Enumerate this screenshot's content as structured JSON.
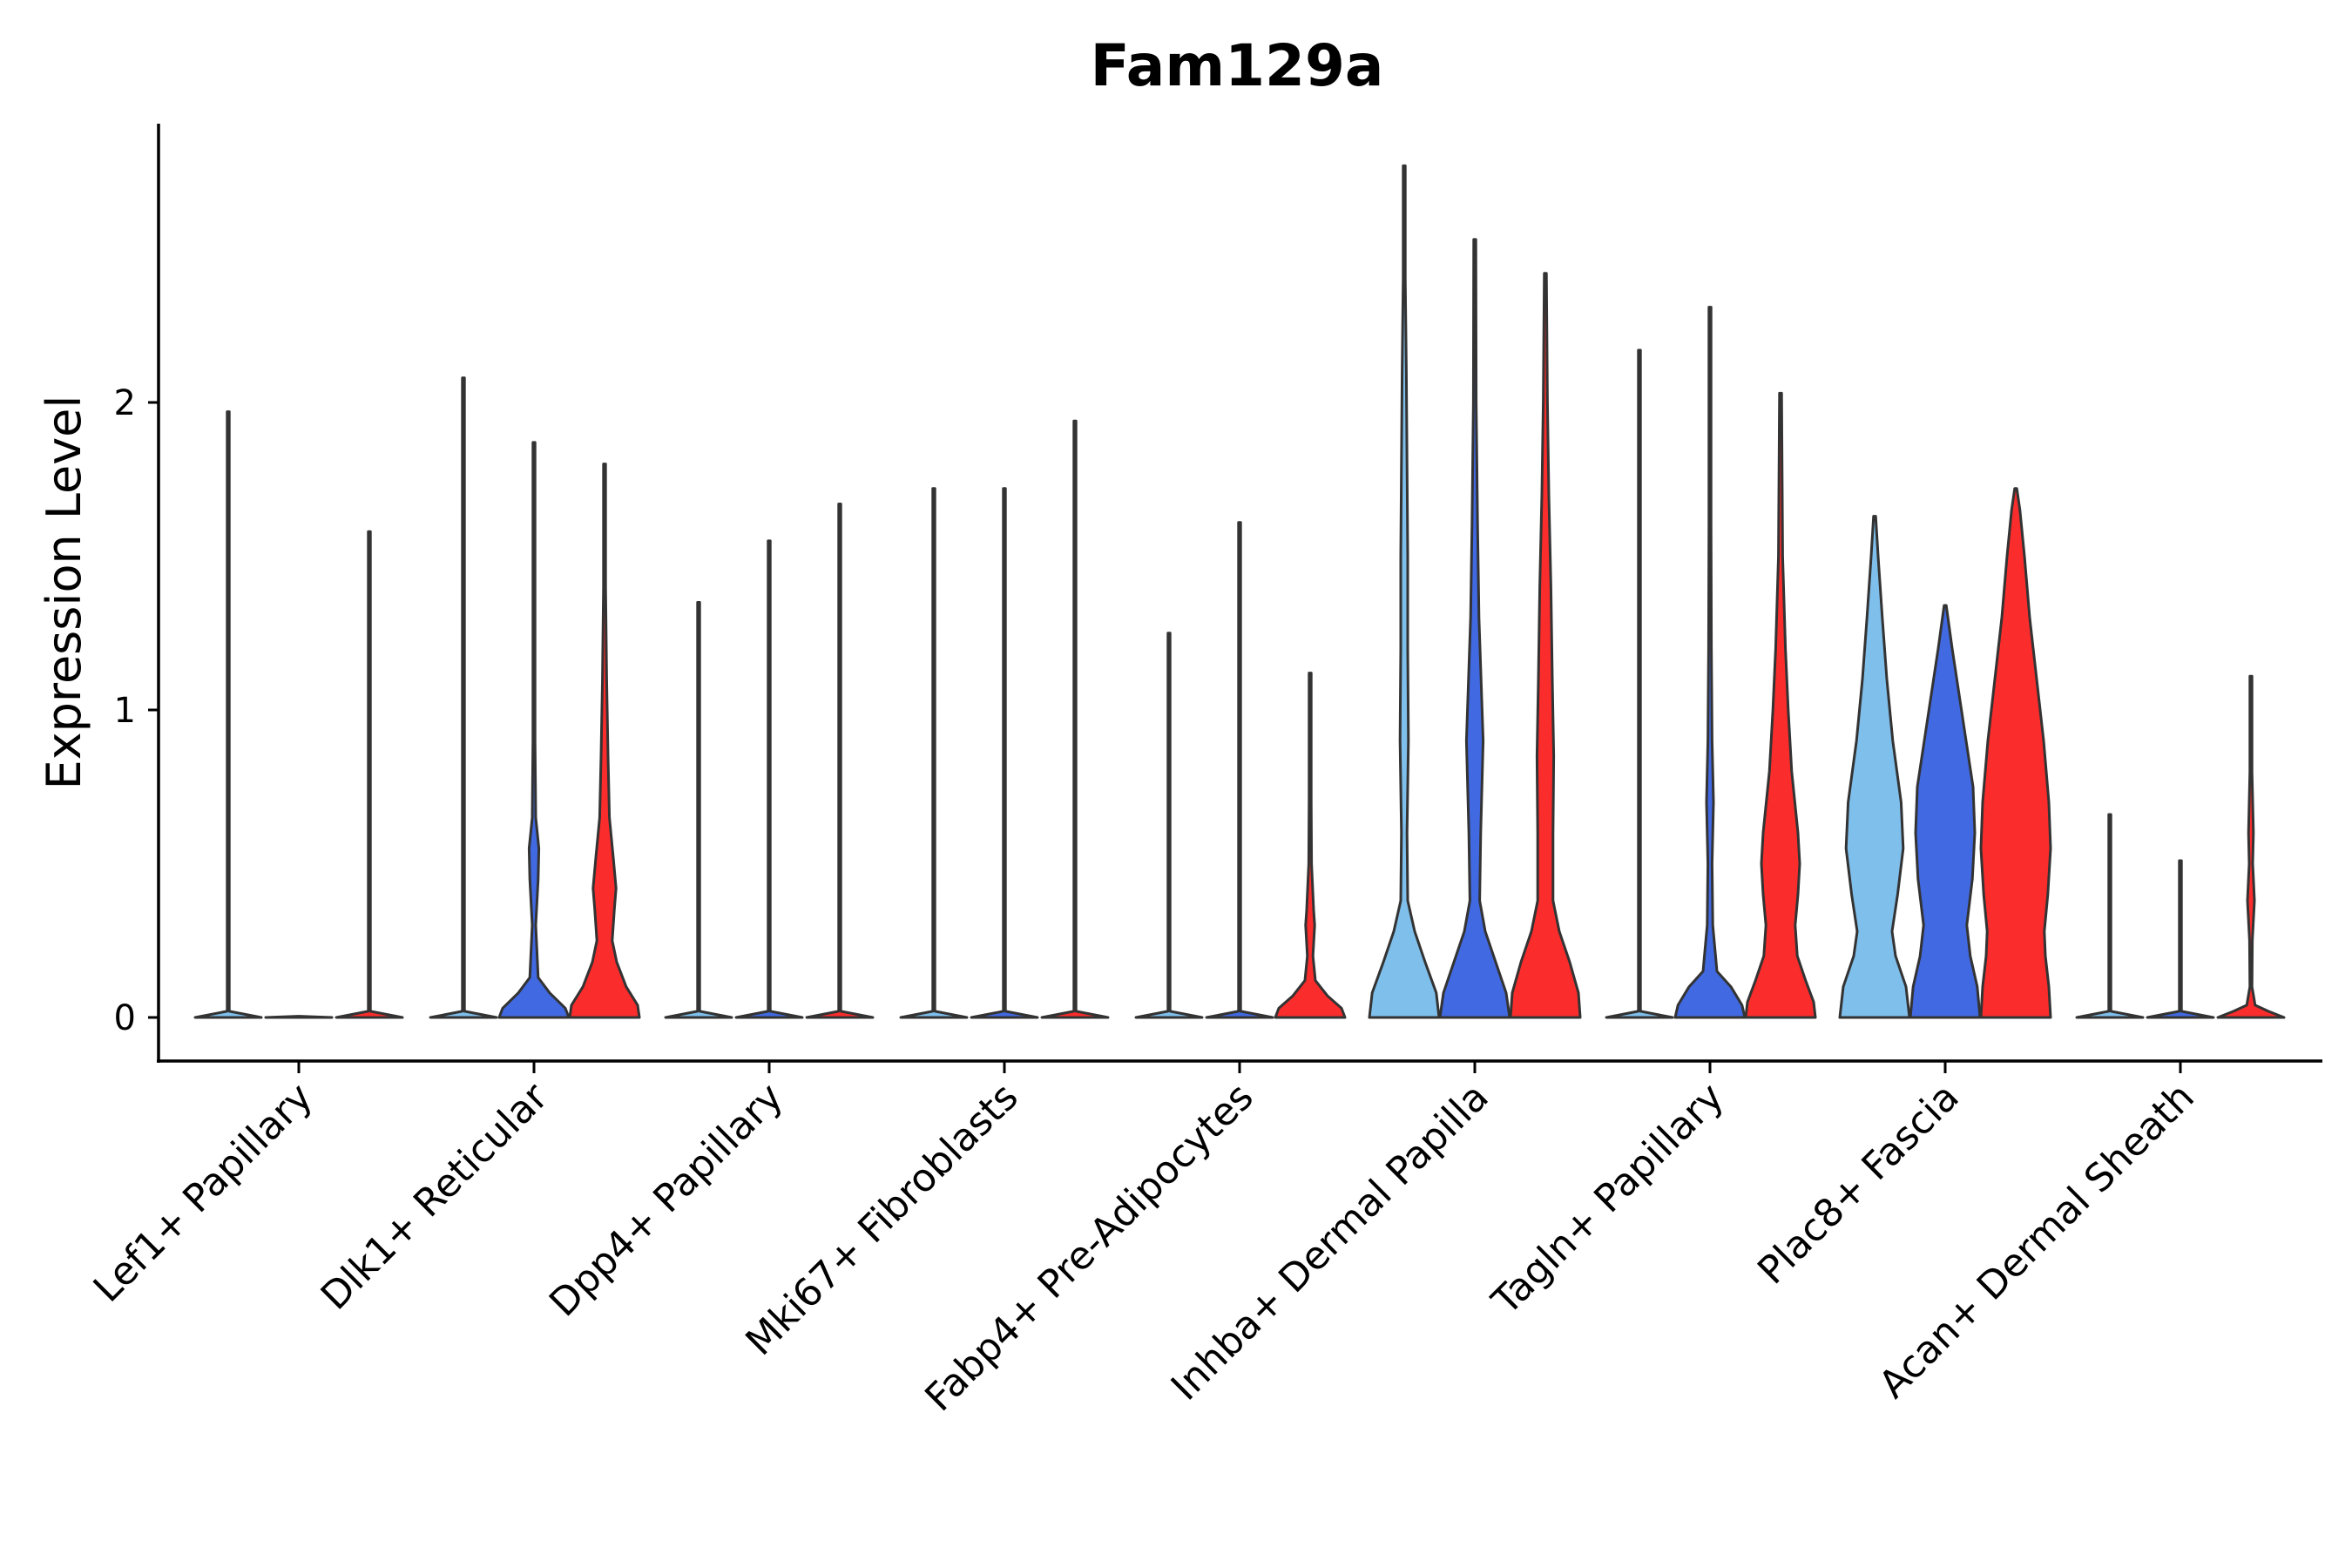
{
  "chart_data": {
    "type": "violin",
    "title": "Fam129a",
    "xlabel": "",
    "ylabel": "Expression Level",
    "ylim": [
      -0.14,
      2.92
    ],
    "yticks": [
      0,
      1,
      2
    ],
    "grid": false,
    "legend": "none",
    "series": [
      {
        "name": "group 1",
        "color": "#7fbfeb"
      },
      {
        "name": "group 2",
        "color": "#4169e1"
      },
      {
        "name": "group 3",
        "color": "#fb2c2c"
      }
    ],
    "categories": [
      "Lef1+ Papillary",
      "Dlk1+ Reticular",
      "Dpp4+ Papillary",
      "Mki67+ Fibroblasts",
      "Fabp4+ Pre-Adipocytes",
      "Inhba+ Dermal Papilla",
      "Tagln+ Papillary",
      "Plac8+ Fascia",
      "Acan+ Dermal Sheath"
    ],
    "violins": [
      [
        {
          "max": 1.97,
          "shape": "flat"
        },
        {
          "max": 0.0,
          "shape": "flat"
        },
        {
          "max": 1.58,
          "shape": "flat"
        }
      ],
      [
        {
          "max": 2.08,
          "shape": "flat"
        },
        {
          "max": 1.87,
          "shape": "dlk1_g2"
        },
        {
          "max": 1.8,
          "shape": "dlk1_g3"
        }
      ],
      [
        {
          "max": 1.35,
          "shape": "flat"
        },
        {
          "max": 1.55,
          "shape": "flat"
        },
        {
          "max": 1.67,
          "shape": "flat"
        }
      ],
      [
        {
          "max": 1.72,
          "shape": "flat"
        },
        {
          "max": 1.72,
          "shape": "flat"
        },
        {
          "max": 1.94,
          "shape": "flat"
        }
      ],
      [
        {
          "max": 1.25,
          "shape": "flat"
        },
        {
          "max": 1.61,
          "shape": "flat"
        },
        {
          "max": 1.12,
          "shape": "fabp4_g3"
        }
      ],
      [
        {
          "max": 2.77,
          "shape": "inhba_g1"
        },
        {
          "max": 2.53,
          "shape": "inhba_g2"
        },
        {
          "max": 2.42,
          "shape": "inhba_g3"
        }
      ],
      [
        {
          "max": 2.17,
          "shape": "flat"
        },
        {
          "max": 2.31,
          "shape": "tagln_g2"
        },
        {
          "max": 2.03,
          "shape": "tagln_g3"
        }
      ],
      [
        {
          "max": 1.63,
          "shape": "plac8_g1"
        },
        {
          "max": 1.34,
          "shape": "plac8_g2"
        },
        {
          "max": 1.72,
          "shape": "plac8_g3"
        }
      ],
      [
        {
          "max": 0.66,
          "shape": "flat"
        },
        {
          "max": 0.51,
          "shape": "flat"
        },
        {
          "max": 1.11,
          "shape": "acan_g3"
        }
      ]
    ]
  }
}
